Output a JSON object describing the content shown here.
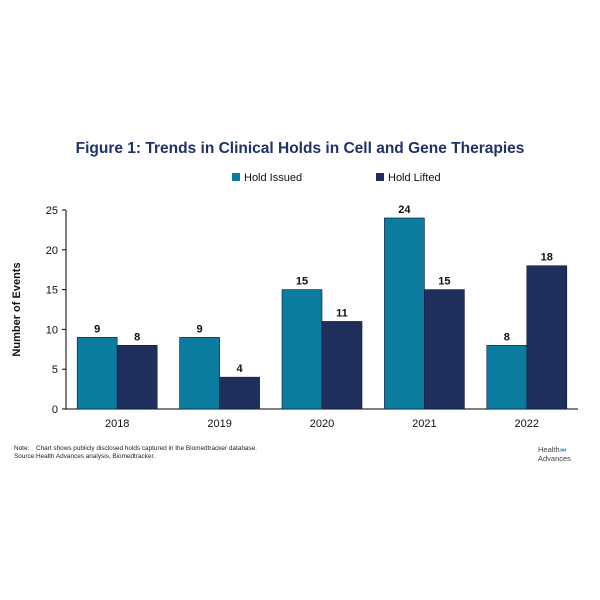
{
  "chart_data": {
    "type": "bar",
    "title": "Figure 1: Trends in Clinical Holds in Cell and Gene Therapies",
    "categories": [
      "2018",
      "2019",
      "2020",
      "2021",
      "2022"
    ],
    "series": [
      {
        "name": "Hold Issued",
        "values": [
          9,
          9,
          15,
          24,
          8
        ],
        "color": "#0b7b9e"
      },
      {
        "name": "Hold Lifted",
        "values": [
          8,
          4,
          11,
          15,
          18
        ],
        "color": "#1e2f5e"
      }
    ],
    "ylabel": "Number of Events",
    "xlabel": "",
    "ylim": [
      0,
      25
    ],
    "yticks": [
      0,
      5,
      10,
      15,
      20,
      25
    ],
    "legend": "top-center",
    "grid": false,
    "data_labels": true
  },
  "footer": {
    "note_key": "Note:",
    "note_text": "Chart shows publicly disclosed holds captured in the Biomedtracker database.",
    "source_key": "Source:",
    "source_text": "Health Advances analysis, Biomedtracker."
  },
  "logo": {
    "line1": "Health",
    "line2": "Advances",
    "chevrons": "»»"
  }
}
